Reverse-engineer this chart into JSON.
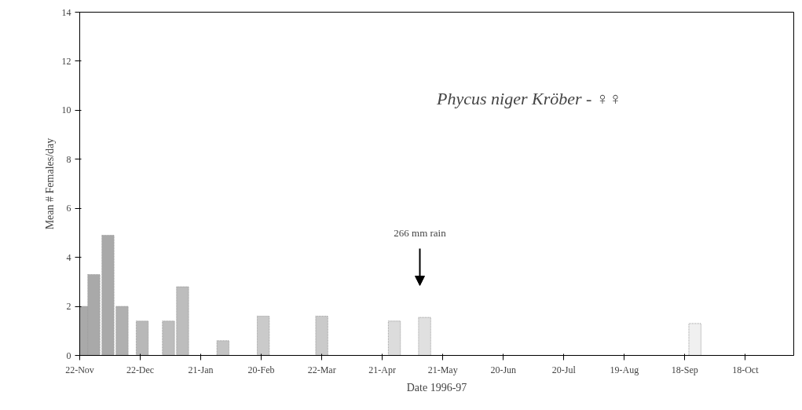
{
  "chart_data": {
    "type": "bar",
    "title": "Phycus niger Kröber - ♀♀",
    "xlabel": "Date 1996-97",
    "ylabel": "Mean # Females/day",
    "x": [
      "1996-11-25",
      "1996-11-29",
      "1996-12-06",
      "1996-12-13",
      "1996-12-23",
      "1997-01-05",
      "1997-01-12",
      "1997-02-01",
      "1997-02-21",
      "1997-03-22",
      "1997-04-27",
      "1997-05-12",
      "1997-09-23"
    ],
    "values": [
      2.0,
      3.3,
      4.9,
      2.0,
      1.4,
      1.4,
      2.8,
      0.6,
      1.6,
      1.6,
      1.4,
      1.55,
      1.3
    ],
    "colors": [
      "#a9a9a9",
      "#a9a9a9",
      "#a9a9a9",
      "#b0b0b0",
      "#b8b8b8",
      "#bdbdbd",
      "#bdbdbd",
      "#c4c4c4",
      "#cacaca",
      "#cacaca",
      "#dcdcdc",
      "#e0e0e0",
      "#f0f0f0"
    ],
    "xlim": [
      "1996-11-22",
      "1997-11-11"
    ],
    "xticks": [
      {
        "value": "1996-11-22",
        "label": "22-Nov"
      },
      {
        "value": "1996-12-22",
        "label": "22-Dec"
      },
      {
        "value": "1997-01-21",
        "label": "21-Jan"
      },
      {
        "value": "1997-02-20",
        "label": "20-Feb"
      },
      {
        "value": "1997-03-22",
        "label": "22-Mar"
      },
      {
        "value": "1997-04-21",
        "label": "21-Apr"
      },
      {
        "value": "1997-05-21",
        "label": "21-May"
      },
      {
        "value": "1997-06-20",
        "label": "20-Jun"
      },
      {
        "value": "1997-07-20",
        "label": "20-Jul"
      },
      {
        "value": "1997-08-19",
        "label": "19-Aug"
      },
      {
        "value": "1997-09-18",
        "label": "18-Sep"
      },
      {
        "value": "1997-10-18",
        "label": "18-Oct"
      }
    ],
    "ylim": [
      0,
      14
    ],
    "yticks": [
      0,
      2,
      4,
      6,
      8,
      10,
      12,
      14
    ],
    "grid": false,
    "annotations": [
      "266 mm rain"
    ]
  }
}
